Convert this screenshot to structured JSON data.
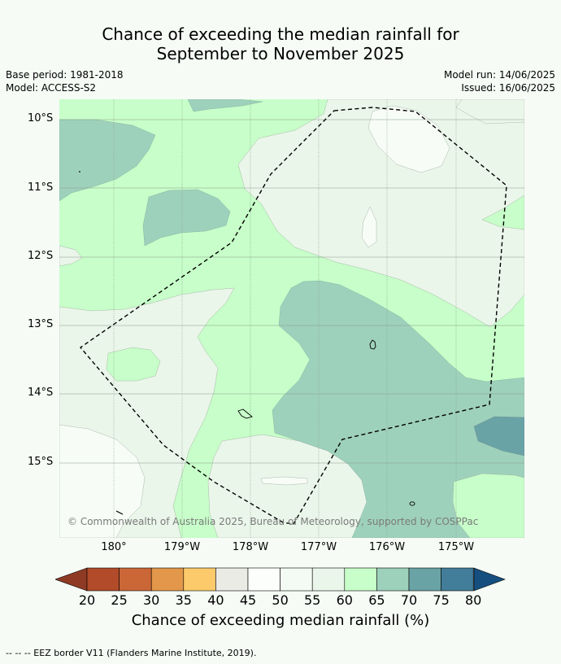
{
  "title": {
    "line1": "Chance of exceeding the median rainfall for",
    "line2": "September to November 2025"
  },
  "meta": {
    "base_period": "Base period: 1981-2018",
    "model": "Model: ACCESS-S2",
    "model_run": "Model run: 14/06/2025",
    "issued": "Issued: 16/06/2025"
  },
  "axes": {
    "lat_labels": [
      "10°S",
      "11°S",
      "12°S",
      "13°S",
      "14°S",
      "15°S"
    ],
    "lon_labels": [
      "180°",
      "179°W",
      "178°W",
      "177°W",
      "176°W",
      "175°W"
    ]
  },
  "map": {
    "copyright": "© Commonwealth of Australia 2025, Bureau of Meteorology, supported by COSPPac",
    "colors": {
      "c50": "#f7fcf7",
      "c55": "#eaf6ea",
      "c60": "#c7fec9",
      "c65": "#9ed1bc",
      "c70": "#6aa3a6"
    }
  },
  "colorbar": {
    "ticks": [
      "20",
      "25",
      "30",
      "35",
      "40",
      "45",
      "50",
      "55",
      "60",
      "65",
      "70",
      "75",
      "80"
    ],
    "colors": [
      "#b24b2a",
      "#cb6637",
      "#e2974a",
      "#fcca6a",
      "#ebebe6",
      "#fbfefb",
      "#f4faf4",
      "#ebf6eb",
      "#c7fec9",
      "#9ed1bc",
      "#6aa3a6",
      "#427d9a"
    ],
    "below_color": "#8f3a24",
    "above_color": "#164f7f",
    "title": "Chance of exceeding median rainfall (%)"
  },
  "footer": "--  --  -- EEZ border V11 (Flanders Marine Institute, 2019)."
}
